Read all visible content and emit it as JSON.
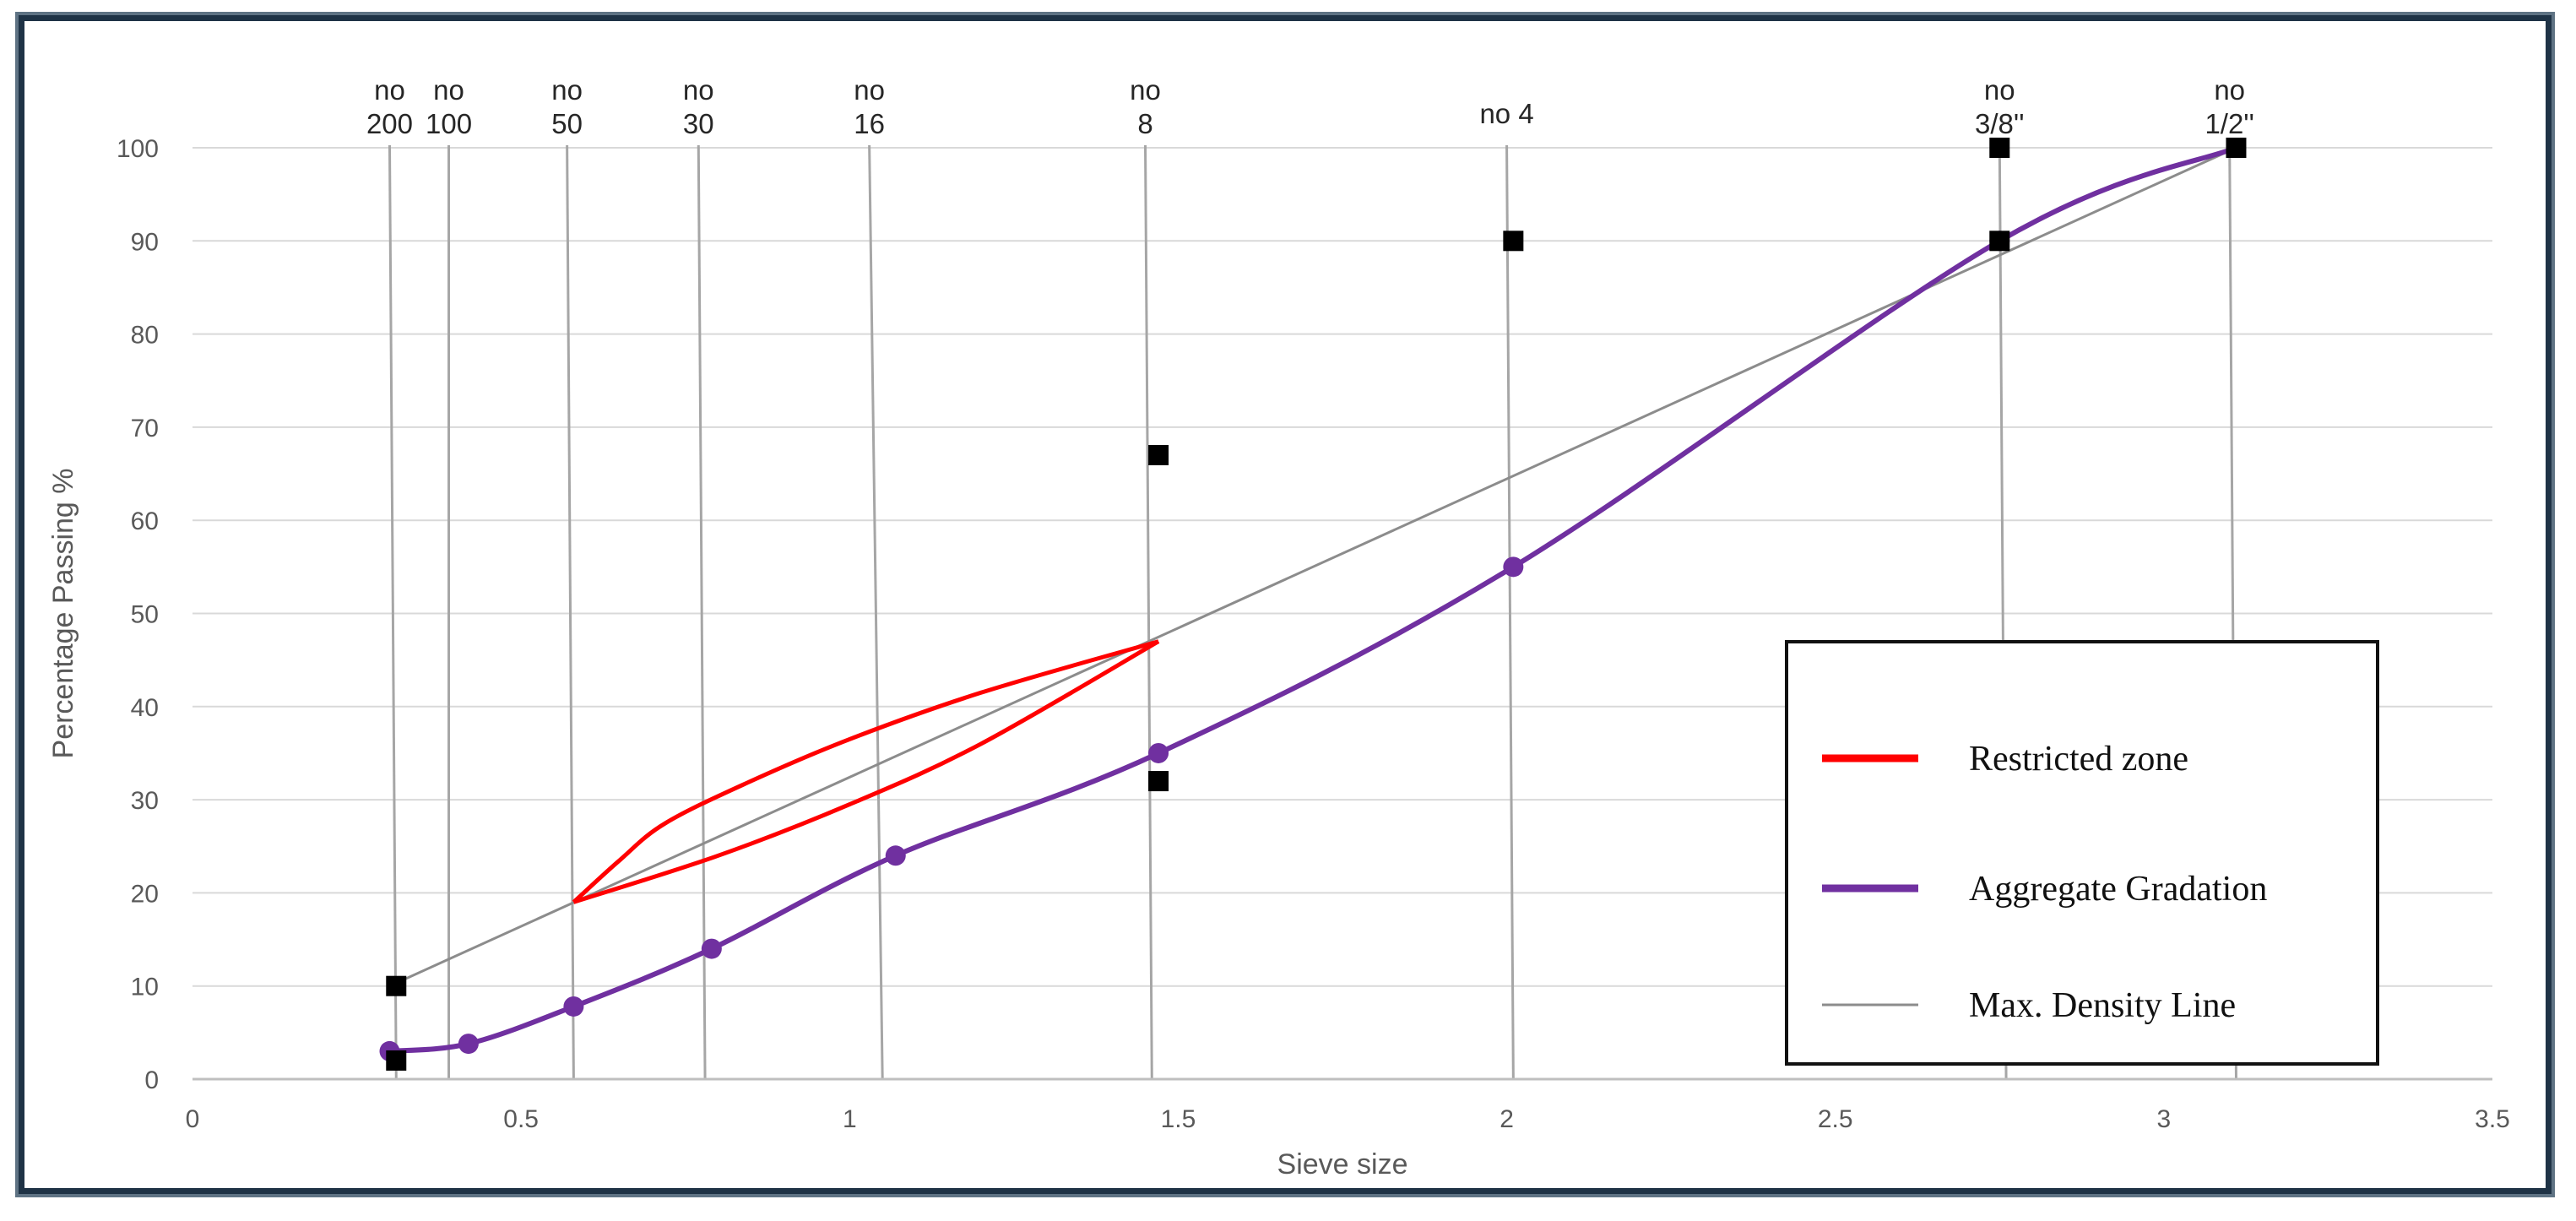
{
  "chart_data": {
    "type": "line",
    "xlabel": "Sieve size",
    "ylabel": "Percentage Passing %",
    "xlim": [
      0,
      3.5
    ],
    "ylim": [
      0,
      100
    ],
    "x_ticks": [
      "0",
      "0.5",
      "1",
      "1.5",
      "2",
      "2.5",
      "3",
      "3.5"
    ],
    "y_ticks": [
      "0",
      "10",
      "20",
      "30",
      "40",
      "50",
      "60",
      "70",
      "80",
      "90",
      "100"
    ],
    "grid": true,
    "legend_position": "lower-right",
    "sieves": [
      {
        "x": 0.3,
        "x_bottom": 0.31,
        "label": [
          "no",
          "200"
        ]
      },
      {
        "x": 0.39,
        "x_bottom": 0.39,
        "label": [
          "no",
          "100"
        ]
      },
      {
        "x": 0.57,
        "x_bottom": 0.58,
        "label": [
          "no",
          "50"
        ]
      },
      {
        "x": 0.77,
        "x_bottom": 0.78,
        "label": [
          "no",
          "30"
        ]
      },
      {
        "x": 1.03,
        "x_bottom": 1.05,
        "label": [
          "no",
          "16"
        ]
      },
      {
        "x": 1.45,
        "x_bottom": 1.46,
        "label": [
          "no",
          "8"
        ]
      },
      {
        "x": 2.0,
        "x_bottom": 2.01,
        "label": [
          "no 4"
        ]
      },
      {
        "x": 2.75,
        "x_bottom": 2.76,
        "label": [
          "no",
          "3/8''"
        ]
      },
      {
        "x": 3.1,
        "x_bottom": 3.11,
        "label": [
          "no",
          "1/2''"
        ]
      }
    ],
    "series": [
      {
        "name": "Restricted zone",
        "color": "#ff0000",
        "style": "closed-lens",
        "upper": {
          "x": [
            0.58,
            0.65,
            0.72,
            0.85,
            1.0,
            1.2,
            1.47
          ],
          "y": [
            19,
            23.5,
            27.5,
            32,
            36.5,
            41.5,
            47
          ]
        },
        "lower": {
          "x": [
            0.58,
            0.8,
            1.0,
            1.2,
            1.47
          ],
          "y": [
            19,
            24,
            29.5,
            36,
            47
          ]
        }
      },
      {
        "name": "Aggregate Gradation",
        "color": "#7030a0",
        "style": "smooth-line-with-markers",
        "x": [
          0.3,
          0.42,
          0.58,
          0.79,
          1.07,
          1.47,
          2.01,
          2.75,
          3.11
        ],
        "y": [
          3,
          3.8,
          7.8,
          14,
          24,
          35,
          55,
          90,
          100
        ]
      },
      {
        "name": "Max. Density Line",
        "color": "#8c8c8c",
        "style": "straight-line",
        "x": [
          0.3,
          3.11
        ],
        "y": [
          10,
          100
        ]
      }
    ],
    "control_points": {
      "color": "#000000",
      "marker": "square",
      "x": [
        0.31,
        0.31,
        1.47,
        1.47,
        2.01,
        2.75,
        2.75,
        3.11
      ],
      "y": [
        2,
        10,
        32,
        67,
        90,
        90,
        100,
        100
      ]
    }
  }
}
